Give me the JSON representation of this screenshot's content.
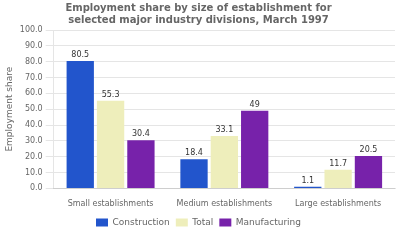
{
  "chart_data": {
    "type": "bar",
    "title": "Employment share by size of establishment for\nselected major industry divisions, March 1997",
    "categories": [
      "Small establishments",
      "Medium establishments",
      "Large establishments"
    ],
    "series": [
      {
        "name": "Construction",
        "color": "#2255cc",
        "values": [
          80.5,
          18.4,
          1.1
        ]
      },
      {
        "name": "Total",
        "color": "#eeeebb",
        "values": [
          55.3,
          33.1,
          11.7
        ]
      },
      {
        "name": "Manufacturing",
        "color": "#7722aa",
        "values": [
          30.4,
          49.0,
          20.5
        ]
      }
    ],
    "ylabel": "Employment share",
    "ylim": [
      0,
      100
    ],
    "yticks": [
      {
        "value": 0,
        "label": "0.0"
      },
      {
        "value": 10,
        "label": "10.0"
      },
      {
        "value": 20,
        "label": "20.0"
      },
      {
        "value": 30,
        "label": "30.0"
      },
      {
        "value": 40,
        "label": "40.0"
      },
      {
        "value": 50,
        "label": "50.0"
      },
      {
        "value": 60,
        "label": "60.0"
      },
      {
        "value": 70,
        "label": "70.0"
      },
      {
        "value": 80,
        "label": "80.0"
      },
      {
        "value": 90,
        "label": "90.0"
      },
      {
        "value": 100,
        "label": "100.0"
      }
    ],
    "grid": true,
    "legend": "bottom",
    "data_labels": true
  }
}
